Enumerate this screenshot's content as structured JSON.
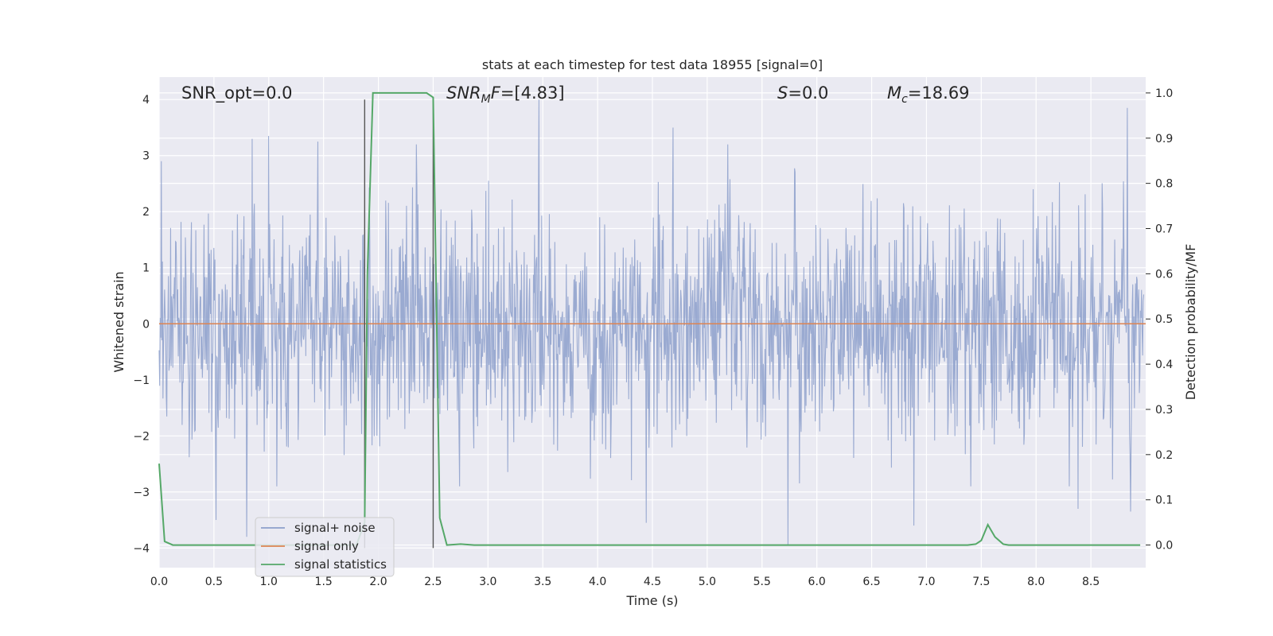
{
  "chart_data": {
    "type": "line",
    "title": "stats at each timestep for test data 18955 [signal=0]",
    "xlabel": "Time (s)",
    "ylabel": "Whitened strain",
    "y2label": "Detection probability/MF",
    "xlim": [
      0,
      9.0
    ],
    "ylim": [
      -4.35,
      4.4
    ],
    "y2lim": [
      -0.05,
      1.035
    ],
    "xticks": [
      0.0,
      0.5,
      1.0,
      1.5,
      2.0,
      2.5,
      3.0,
      3.5,
      4.0,
      4.5,
      5.0,
      5.5,
      6.0,
      6.5,
      7.0,
      7.5,
      8.0,
      8.5
    ],
    "xtick_labels": [
      "0.0",
      "0.5",
      "1.0",
      "1.5",
      "2.0",
      "2.5",
      "3.0",
      "3.5",
      "4.0",
      "4.5",
      "5.0",
      "5.5",
      "6.0",
      "6.5",
      "7.0",
      "7.5",
      "8.0",
      "8.5"
    ],
    "yticks": [
      -4,
      -3,
      -2,
      -1,
      0,
      1,
      2,
      3,
      4
    ],
    "ytick_labels": [
      "−4",
      "−3",
      "−2",
      "−1",
      "0",
      "1",
      "2",
      "3",
      "4"
    ],
    "y2ticks": [
      0.0,
      0.1,
      0.2,
      0.3,
      0.4,
      0.5,
      0.6,
      0.7,
      0.8,
      0.9,
      1.0
    ],
    "y2tick_labels": [
      "0.0",
      "0.1",
      "0.2",
      "0.3",
      "0.4",
      "0.5",
      "0.6",
      "0.7",
      "0.8",
      "0.9",
      "1.0"
    ],
    "grid": true,
    "legend_position": "lower-left",
    "annotations": {
      "snr_opt": "SNR_opt=0.0",
      "snr_mf_label": "SNR",
      "snr_mf_sub": "M",
      "snr_mf_suffix": "F",
      "snr_mf_value": "=[4.83]",
      "s_label": "S",
      "s_value": "=0.0",
      "mc_label": "M",
      "mc_sub": "c",
      "mc_value": "=18.69"
    },
    "vertical_lines_x": [
      1.875,
      2.5
    ],
    "series": [
      {
        "name": "signal+ noise",
        "axis": "left",
        "color": "#8c9fcb",
        "envelope": {
          "typical_amplitude": 1.6,
          "extreme_peaks": [
            {
              "x": 0.02,
              "y": 2.9
            },
            {
              "x": 0.85,
              "y": 3.3
            },
            {
              "x": 1.0,
              "y": 3.35
            },
            {
              "x": 1.45,
              "y": 3.25
            },
            {
              "x": 2.35,
              "y": 3.2
            },
            {
              "x": 3.47,
              "y": 4.0
            },
            {
              "x": 4.7,
              "y": 3.5
            },
            {
              "x": 5.2,
              "y": 3.2
            },
            {
              "x": 8.85,
              "y": 3.85
            },
            {
              "x": 0.8,
              "y": -3.8
            },
            {
              "x": 0.52,
              "y": -3.5
            },
            {
              "x": 4.45,
              "y": -3.55
            },
            {
              "x": 5.75,
              "y": -3.95
            },
            {
              "x": 6.9,
              "y": -3.6
            },
            {
              "x": 8.4,
              "y": -3.3
            },
            {
              "x": 8.88,
              "y": -3.35
            }
          ]
        }
      },
      {
        "name": "signal only",
        "axis": "left",
        "color": "#dd8452",
        "x": [
          0.0,
          9.0
        ],
        "y": [
          0.0,
          0.0
        ]
      },
      {
        "name": "signal statistics",
        "axis": "right",
        "color": "#55a868",
        "x": [
          0.0,
          0.05,
          0.125,
          0.25,
          1.5,
          1.75,
          1.8,
          1.875,
          1.9,
          1.95,
          2.0,
          2.25,
          2.44,
          2.5,
          2.56,
          2.625,
          2.75,
          2.875,
          3.0,
          7.375,
          7.45,
          7.5,
          7.56,
          7.625,
          7.7,
          7.75,
          8.95
        ],
        "y": [
          0.18,
          0.008,
          0.0,
          0.0,
          0.0,
          0.0,
          0.0,
          0.05,
          0.6,
          1.0,
          1.0,
          1.0,
          1.0,
          0.99,
          0.06,
          0.0,
          0.002,
          0.0,
          0.0,
          0.0,
          0.002,
          0.01,
          0.045,
          0.018,
          0.002,
          0.0,
          0.0
        ]
      }
    ]
  }
}
